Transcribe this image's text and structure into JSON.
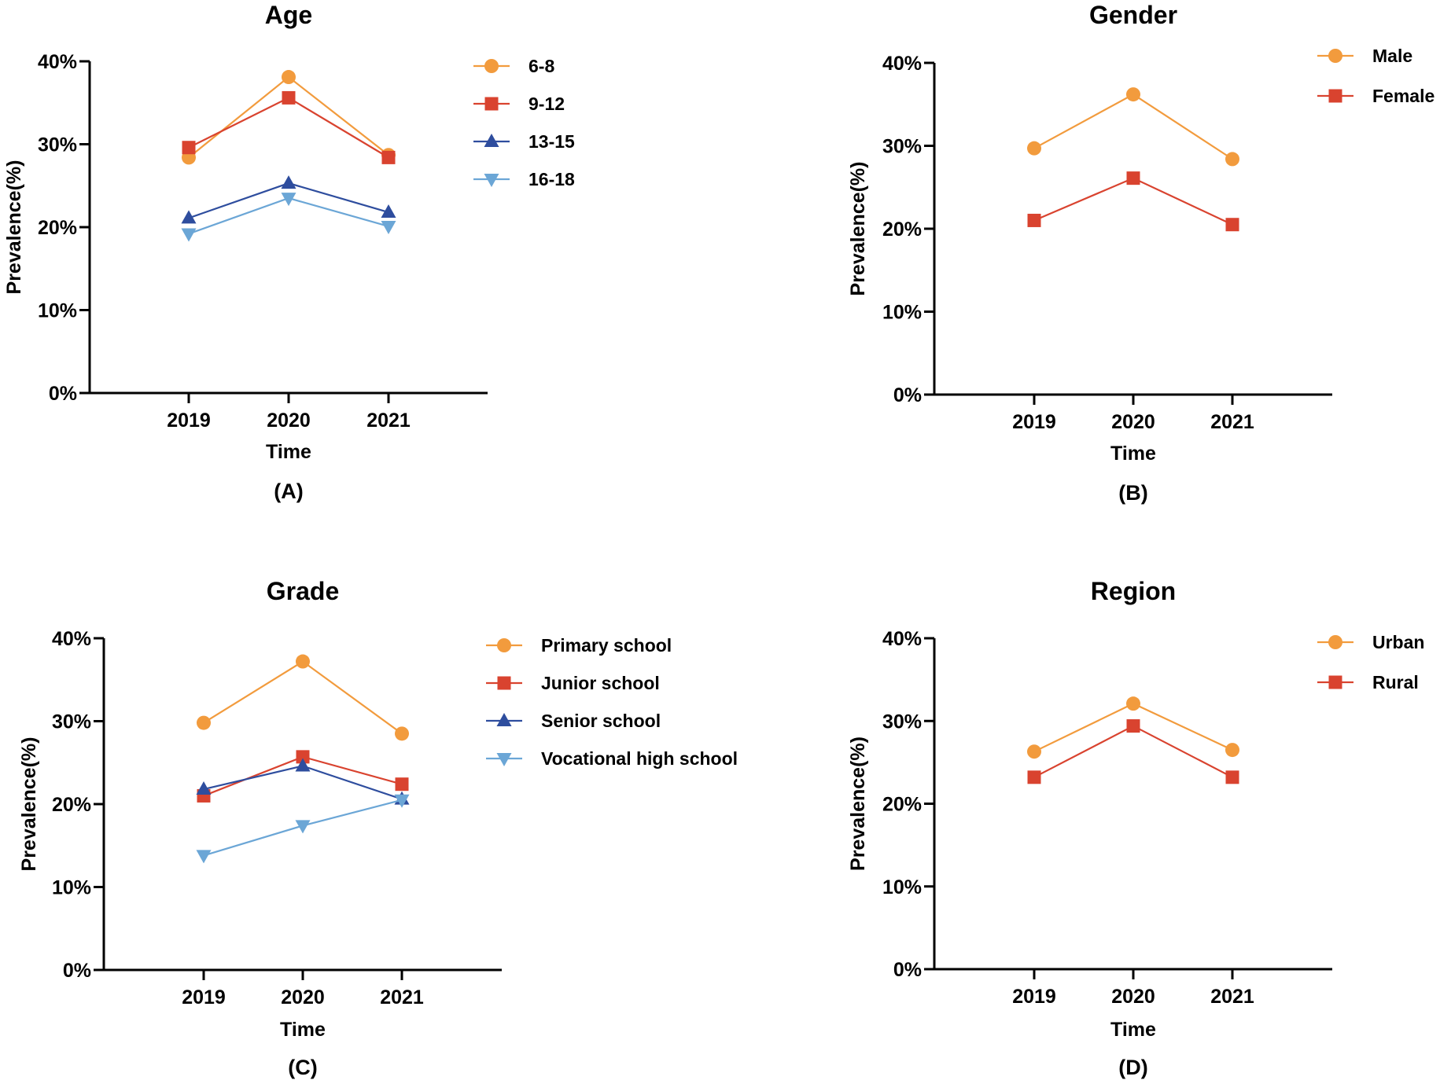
{
  "chart_data": [
    {
      "type": "line",
      "panel_label": "(A)",
      "title": "Age",
      "xlabel": "Time",
      "ylabel": "Prevalence(%)",
      "categories": [
        "2019",
        "2020",
        "2021"
      ],
      "yticks": [
        "0%",
        "10%",
        "20%",
        "30%",
        "40%"
      ],
      "ylim": [
        0,
        40
      ],
      "legend_position": "right",
      "series": [
        {
          "name": "6-8",
          "color": "#F29B3D",
          "marker": "circle",
          "values": [
            28.4,
            38.1,
            28.7
          ]
        },
        {
          "name": "9-12",
          "color": "#D9432F",
          "marker": "square",
          "values": [
            29.6,
            35.6,
            28.4
          ]
        },
        {
          "name": "13-15",
          "color": "#2E4D9E",
          "marker": "triangle-up",
          "values": [
            21.1,
            25.3,
            21.8
          ]
        },
        {
          "name": "16-18",
          "color": "#6BA6D6",
          "marker": "triangle-down",
          "values": [
            19.2,
            23.5,
            20.1
          ]
        }
      ]
    },
    {
      "type": "line",
      "panel_label": "(B)",
      "title": "Gender",
      "xlabel": "Time",
      "ylabel": "Prevalence(%)",
      "categories": [
        "2019",
        "2020",
        "2021"
      ],
      "yticks": [
        "0%",
        "10%",
        "20%",
        "30%",
        "40%"
      ],
      "ylim": [
        0,
        40
      ],
      "legend_position": "top-right",
      "series": [
        {
          "name": "Male",
          "color": "#F29B3D",
          "marker": "circle",
          "values": [
            29.7,
            36.2,
            28.4
          ]
        },
        {
          "name": "Female",
          "color": "#D9432F",
          "marker": "square",
          "values": [
            21.0,
            26.1,
            20.5
          ]
        }
      ]
    },
    {
      "type": "line",
      "panel_label": "(C)",
      "title": "Grade",
      "xlabel": "Time",
      "ylabel": "Prevalence(%)",
      "categories": [
        "2019",
        "2020",
        "2021"
      ],
      "yticks": [
        "0%",
        "10%",
        "20%",
        "30%",
        "40%"
      ],
      "ylim": [
        0,
        40
      ],
      "legend_position": "right",
      "series": [
        {
          "name": "Primary school",
          "color": "#F29B3D",
          "marker": "circle",
          "values": [
            29.8,
            37.2,
            28.5
          ]
        },
        {
          "name": "Junior school",
          "color": "#D9432F",
          "marker": "square",
          "values": [
            21.0,
            25.7,
            22.4
          ]
        },
        {
          "name": "Senior school",
          "color": "#2E4D9E",
          "marker": "triangle-up",
          "values": [
            21.8,
            24.6,
            20.6
          ]
        },
        {
          "name": "Vocational high school",
          "color": "#6BA6D6",
          "marker": "triangle-down",
          "values": [
            13.8,
            17.4,
            20.5
          ]
        }
      ]
    },
    {
      "type": "line",
      "panel_label": "(D)",
      "title": "Region",
      "xlabel": "Time",
      "ylabel": "Prevalence(%)",
      "categories": [
        "2019",
        "2020",
        "2021"
      ],
      "yticks": [
        "0%",
        "10%",
        "20%",
        "30%",
        "40%"
      ],
      "ylim": [
        0,
        40
      ],
      "legend_position": "top-right",
      "series": [
        {
          "name": "Urban",
          "color": "#F29B3D",
          "marker": "circle",
          "values": [
            26.3,
            32.1,
            26.5
          ]
        },
        {
          "name": "Rural",
          "color": "#D9432F",
          "marker": "square",
          "values": [
            23.2,
            29.4,
            23.2
          ]
        }
      ]
    }
  ]
}
